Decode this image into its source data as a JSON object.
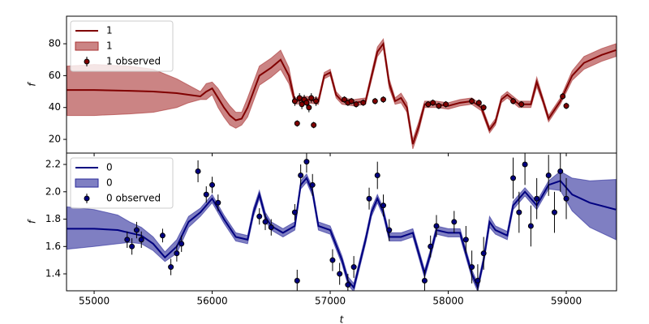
{
  "chart_data": [
    {
      "type": "line",
      "ylabel": "f",
      "legend": "upper left",
      "show_xtick_labels": false,
      "xlim": [
        54766,
        59426
      ],
      "xticks": [
        55000,
        56000,
        57000,
        58000,
        59000
      ],
      "ylim": [
        11.4,
        97.3
      ],
      "yticks": [
        20,
        40,
        60,
        80
      ],
      "x": [
        54770,
        55000,
        55300,
        55500,
        55700,
        55800,
        55900,
        55950,
        56000,
        56050,
        56100,
        56150,
        56200,
        56250,
        56300,
        56350,
        56400,
        56500,
        56580,
        56650,
        56700,
        56800,
        56900,
        56950,
        57000,
        57050,
        57100,
        57200,
        57300,
        57400,
        57450,
        57500,
        57550,
        57600,
        57650,
        57700,
        57750,
        57800,
        57900,
        58000,
        58100,
        58200,
        58280,
        58350,
        58400,
        58450,
        58500,
        58600,
        58700,
        58750,
        58800,
        58850,
        58950,
        59050,
        59150,
        59300,
        59420
      ],
      "series": [
        {
          "name": "1",
          "color": "#800000",
          "values": [
            51,
            51,
            50.5,
            50,
            49,
            48,
            47,
            50,
            52,
            46,
            40,
            35,
            32,
            33,
            40,
            50,
            60,
            65,
            70,
            60,
            44,
            45,
            44,
            60,
            62,
            48,
            44,
            43,
            44,
            75,
            80,
            55,
            44,
            46,
            40,
            17,
            28,
            42,
            42,
            41,
            43,
            44,
            40,
            26,
            31,
            45,
            48,
            42,
            42,
            56,
            45,
            33,
            44,
            60,
            68,
            73,
            76
          ]
        }
      ],
      "band": {
        "name": "1",
        "color": "#a83232",
        "lower": [
          35,
          35,
          36,
          37,
          40,
          43,
          45,
          45,
          48,
          40,
          34,
          29,
          27,
          29,
          34,
          44,
          54,
          59,
          64,
          55,
          42,
          43,
          42,
          58,
          60,
          46,
          42,
          41,
          42,
          72,
          77,
          52,
          42,
          43,
          37,
          14,
          25,
          40,
          40,
          39,
          41,
          42,
          38,
          24,
          29,
          43,
          46,
          40,
          40,
          53,
          43,
          31,
          42,
          57,
          64,
          69,
          72
        ],
        "upper": [
          66,
          67,
          66,
          64,
          58,
          54,
          50,
          55,
          56,
          52,
          46,
          41,
          37,
          37,
          46,
          56,
          66,
          71,
          76,
          65,
          46,
          47,
          46,
          62,
          64,
          50,
          46,
          45,
          46,
          78,
          83,
          58,
          46,
          49,
          43,
          20,
          31,
          44,
          44,
          43,
          45,
          46,
          42,
          28,
          33,
          47,
          50,
          44,
          44,
          59,
          47,
          35,
          46,
          63,
          72,
          77,
          80
        ]
      },
      "observed": {
        "name": "1 observed",
        "x": [
          56700,
          56720,
          56740,
          56760,
          56780,
          56800,
          56820,
          56840,
          56860,
          56880,
          57120,
          57150,
          57180,
          57220,
          57280,
          57380,
          57450,
          57830,
          57870,
          57920,
          57980,
          58200,
          58260,
          58300,
          58550,
          58620,
          58970,
          59000
        ],
        "values": [
          44,
          30,
          46,
          42,
          45,
          43,
          40,
          46,
          29,
          44,
          45,
          43,
          44,
          42,
          43,
          44,
          45,
          42,
          43,
          41,
          42,
          44,
          43,
          40,
          44,
          42,
          47,
          41
        ],
        "errors": [
          3,
          2,
          3,
          3,
          3,
          3,
          3,
          3,
          2,
          3,
          2,
          2,
          2,
          2,
          2,
          2,
          2,
          2,
          2,
          2,
          2,
          2,
          2,
          2,
          2,
          2,
          2,
          2
        ]
      }
    },
    {
      "type": "line",
      "ylabel": "f",
      "xlabel": "t",
      "legend": "upper left",
      "show_xtick_labels": true,
      "xlim": [
        54766,
        59426
      ],
      "xticks": [
        55000,
        56000,
        57000,
        58000,
        59000
      ],
      "ylim": [
        1.276,
        2.283
      ],
      "yticks": [
        1.4,
        1.6,
        1.8,
        {
          "value": 2,
          "label": "2.0"
        },
        2.2
      ],
      "x": [
        54770,
        55000,
        55200,
        55300,
        55400,
        55500,
        55600,
        55700,
        55800,
        55900,
        56000,
        56100,
        56200,
        56300,
        56350,
        56400,
        56450,
        56500,
        56600,
        56700,
        56750,
        56800,
        56850,
        56900,
        57000,
        57100,
        57150,
        57200,
        57300,
        57350,
        57400,
        57450,
        57500,
        57600,
        57700,
        57800,
        57850,
        57900,
        58000,
        58100,
        58200,
        58250,
        58300,
        58350,
        58400,
        58500,
        58550,
        58650,
        58750,
        58850,
        58950,
        59050,
        59200,
        59420
      ],
      "series": [
        {
          "name": "0",
          "color": "#000080",
          "values": [
            1.73,
            1.73,
            1.72,
            1.7,
            1.68,
            1.62,
            1.52,
            1.6,
            1.78,
            1.85,
            1.95,
            1.8,
            1.67,
            1.65,
            1.85,
            1.98,
            1.82,
            1.75,
            1.7,
            1.75,
            2.05,
            2.1,
            2.0,
            1.75,
            1.72,
            1.5,
            1.35,
            1.3,
            1.65,
            1.85,
            1.95,
            1.85,
            1.67,
            1.67,
            1.7,
            1.4,
            1.55,
            1.72,
            1.7,
            1.7,
            1.4,
            1.3,
            1.5,
            1.78,
            1.72,
            1.68,
            1.9,
            2.0,
            1.9,
            2.05,
            2.08,
            1.98,
            1.92,
            1.87
          ]
        }
      ],
      "band": {
        "name": "0",
        "color": "#2a2a9a",
        "lower": [
          1.58,
          1.6,
          1.62,
          1.63,
          1.62,
          1.57,
          1.49,
          1.55,
          1.74,
          1.82,
          1.92,
          1.77,
          1.64,
          1.62,
          1.82,
          1.95,
          1.79,
          1.72,
          1.67,
          1.72,
          2.02,
          2.07,
          1.97,
          1.72,
          1.69,
          1.47,
          1.32,
          1.27,
          1.62,
          1.82,
          1.92,
          1.82,
          1.64,
          1.64,
          1.67,
          1.37,
          1.52,
          1.69,
          1.67,
          1.67,
          1.37,
          1.27,
          1.47,
          1.74,
          1.69,
          1.65,
          1.87,
          1.97,
          1.87,
          2.02,
          2.01,
          1.86,
          1.74,
          1.65
        ],
        "upper": [
          1.89,
          1.87,
          1.83,
          1.78,
          1.74,
          1.67,
          1.56,
          1.65,
          1.82,
          1.88,
          1.98,
          1.83,
          1.7,
          1.68,
          1.88,
          2.01,
          1.85,
          1.78,
          1.73,
          1.78,
          2.08,
          2.13,
          2.03,
          1.78,
          1.75,
          1.53,
          1.38,
          1.33,
          1.68,
          1.88,
          1.98,
          1.88,
          1.7,
          1.7,
          1.73,
          1.43,
          1.58,
          1.75,
          1.73,
          1.73,
          1.43,
          1.33,
          1.53,
          1.82,
          1.75,
          1.71,
          1.93,
          2.03,
          1.93,
          2.08,
          2.15,
          2.1,
          2.08,
          2.09
        ]
      },
      "observed": {
        "name": "0 observed",
        "x": [
          55280,
          55320,
          55360,
          55400,
          55580,
          55650,
          55700,
          55740,
          55880,
          55950,
          56000,
          56050,
          56400,
          56450,
          56500,
          56700,
          56720,
          56750,
          56800,
          56850,
          57020,
          57080,
          57150,
          57200,
          57330,
          57400,
          57450,
          57500,
          57800,
          57850,
          57900,
          58050,
          58150,
          58200,
          58250,
          58300,
          58550,
          58600,
          58650,
          58700,
          58750,
          58850,
          58900,
          58950,
          59000
        ],
        "values": [
          1.65,
          1.6,
          1.72,
          1.65,
          1.68,
          1.45,
          1.55,
          1.62,
          2.15,
          1.98,
          2.05,
          1.92,
          1.82,
          1.78,
          1.74,
          1.85,
          1.35,
          2.12,
          2.22,
          2.05,
          1.5,
          1.4,
          1.32,
          1.45,
          1.95,
          2.12,
          1.9,
          1.72,
          1.35,
          1.6,
          1.75,
          1.78,
          1.65,
          1.45,
          1.35,
          1.55,
          2.1,
          1.85,
          2.2,
          1.75,
          1.95,
          2.12,
          1.85,
          2.15,
          1.95
        ],
        "errors": [
          0.06,
          0.06,
          0.06,
          0.06,
          0.05,
          0.06,
          0.06,
          0.06,
          0.08,
          0.06,
          0.06,
          0.06,
          0.06,
          0.06,
          0.06,
          0.06,
          0.08,
          0.08,
          0.08,
          0.08,
          0.08,
          0.08,
          0.08,
          0.08,
          0.08,
          0.1,
          0.08,
          0.08,
          0.08,
          0.08,
          0.08,
          0.08,
          0.1,
          0.12,
          0.12,
          0.12,
          0.15,
          0.15,
          0.15,
          0.15,
          0.15,
          0.15,
          0.15,
          0.15,
          0.15
        ]
      }
    }
  ]
}
